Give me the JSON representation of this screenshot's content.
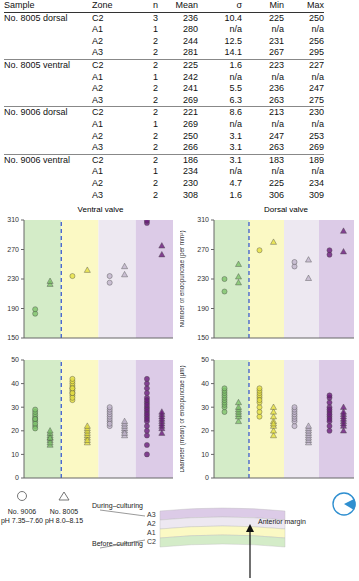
{
  "table": {
    "header": [
      "Sample",
      "Zone",
      "n",
      "Mean",
      "σ",
      "Min",
      "Max"
    ],
    "groups": [
      {
        "sample": "No. 8005 dorsal",
        "rows": [
          [
            "C2",
            3,
            236,
            10.4,
            225,
            250
          ],
          [
            "A1",
            1,
            280,
            "n/a",
            "n/a",
            "n/a"
          ],
          [
            "A2",
            2,
            244,
            12.5,
            231,
            256
          ],
          [
            "A3",
            2,
            281,
            14.1,
            267,
            295
          ]
        ]
      },
      {
        "sample": "No. 8005 ventral",
        "rows": [
          [
            "C2",
            2,
            225,
            1.6,
            223,
            227
          ],
          [
            "A1",
            1,
            242,
            "n/a",
            "n/a",
            "n/a"
          ],
          [
            "A2",
            2,
            241,
            5.5,
            236,
            247
          ],
          [
            "A3",
            2,
            269,
            6.3,
            263,
            275
          ]
        ]
      },
      {
        "sample": "No. 9006 dorsal",
        "rows": [
          [
            "C2",
            2,
            221,
            8.6,
            213,
            230
          ],
          [
            "A1",
            1,
            269,
            "n/a",
            "n/a",
            "n/a"
          ],
          [
            "A2",
            2,
            250,
            3.1,
            247,
            253
          ],
          [
            "A3",
            2,
            266,
            3.1,
            263,
            269
          ]
        ]
      },
      {
        "sample": "No. 9006 ventral",
        "rows": [
          [
            "C2",
            2,
            186,
            3.1,
            183,
            189
          ],
          [
            "A1",
            1,
            234,
            "n/a",
            "n/a",
            "n/a"
          ],
          [
            "A2",
            2,
            230,
            4.7,
            225,
            234
          ],
          [
            "A3",
            2,
            308,
            1.6,
            306,
            309
          ]
        ]
      }
    ]
  },
  "zones": [
    {
      "name": "C2",
      "color": "#d4ecc8"
    },
    {
      "name": "A1",
      "color": "#fbf9c4"
    },
    {
      "name": "A2",
      "color": "#ede8f1"
    },
    {
      "name": "A3",
      "color": "#dccbe7"
    }
  ],
  "chart_data": [
    {
      "type": "scatter",
      "title": "Ventral valve",
      "ylim": [
        150,
        310
      ],
      "yticks": [
        150,
        190,
        230,
        270,
        310
      ],
      "tick_labels": "y",
      "series": [
        {
          "name": "No. 9006",
          "marker": "circle",
          "colors": [
            "#7dc36a",
            "#e6e040",
            "#c0b4cc",
            "#6a1b7a"
          ],
          "values": [
            [
              183,
              189
            ],
            [
              234
            ],
            [
              225,
              234
            ],
            [
              306,
              309
            ]
          ]
        },
        {
          "name": "No. 8005",
          "marker": "triangle",
          "colors": [
            "#7dc36a",
            "#e6e040",
            "#c0b4cc",
            "#6a1b7a"
          ],
          "values": [
            [
              223,
              227
            ],
            [
              242
            ],
            [
              236,
              247
            ],
            [
              263,
              275
            ]
          ]
        }
      ]
    },
    {
      "type": "scatter",
      "title": "Dorsal valve",
      "ylabel": "Number of endopunctae (per mm²)",
      "ylim": [
        150,
        310
      ],
      "yticks": [
        150,
        190,
        230,
        270,
        310
      ],
      "tick_labels": "y",
      "series": [
        {
          "name": "No. 9006",
          "marker": "circle",
          "colors": [
            "#7dc36a",
            "#e6e040",
            "#c0b4cc",
            "#6a1b7a"
          ],
          "values": [
            [
              213,
              230
            ],
            [
              269
            ],
            [
              247,
              253
            ],
            [
              263,
              269
            ]
          ]
        },
        {
          "name": "No. 8005",
          "marker": "triangle",
          "colors": [
            "#7dc36a",
            "#e6e040",
            "#c0b4cc",
            "#6a1b7a"
          ],
          "values": [
            [
              225,
              233,
              250
            ],
            [
              280
            ],
            [
              231,
              256
            ],
            [
              267,
              295
            ]
          ]
        }
      ]
    },
    {
      "type": "scatter",
      "ylim": [
        0,
        50
      ],
      "yticks": [
        0,
        10,
        20,
        30,
        40,
        50
      ],
      "tick_labels": "y",
      "series": [
        {
          "name": "No. 9006",
          "marker": "circle",
          "colors": [
            "#7dc36a",
            "#e6e040",
            "#c0b4cc",
            "#6a1b7a"
          ],
          "values": [
            [
              22,
              24,
              25,
              26,
              27,
              28,
              23,
              29,
              25,
              21
            ],
            [
              33,
              35,
              36,
              37,
              38,
              39,
              40,
              41,
              42,
              34,
              36,
              38
            ],
            [
              22,
              24,
              25,
              26,
              27,
              28,
              29,
              30,
              23
            ],
            [
              10,
              14,
              18,
              20,
              22,
              24,
              26,
              28,
              30,
              32,
              34,
              36,
              38,
              40,
              42,
              25,
              27,
              29,
              31,
              33
            ]
          ]
        },
        {
          "name": "No. 8005",
          "marker": "triangle",
          "colors": [
            "#7dc36a",
            "#e6e040",
            "#c0b4cc",
            "#6a1b7a"
          ],
          "values": [
            [
              14,
              16,
              17,
              18,
              19,
              15,
              20,
              17
            ],
            [
              15,
              17,
              18,
              19,
              20,
              21,
              22,
              16
            ],
            [
              18,
              20,
              21,
              22,
              23,
              24,
              19
            ],
            [
              19,
              21,
              22,
              23,
              24,
              25,
              26,
              27,
              28
            ]
          ]
        }
      ]
    },
    {
      "type": "scatter",
      "ylabel": "Diameter (mean) of endopunctae (μm)",
      "ylim": [
        0,
        50
      ],
      "yticks": [
        0,
        10,
        20,
        30,
        40,
        50
      ],
      "tick_labels": "y",
      "series": [
        {
          "name": "No. 9006",
          "marker": "circle",
          "colors": [
            "#7dc36a",
            "#e6e040",
            "#c0b4cc",
            "#6a1b7a"
          ],
          "values": [
            [
              28,
              30,
              31,
              32,
              33,
              34,
              35,
              36,
              37,
              38
            ],
            [
              26,
              28,
              30,
              32,
              34,
              35,
              36,
              37,
              38,
              33
            ],
            [
              22,
              24,
              25,
              26,
              27,
              28,
              29,
              30
            ],
            [
              20,
              22,
              24,
              26,
              28,
              30,
              32,
              34,
              35,
              25,
              27,
              29
            ]
          ]
        },
        {
          "name": "No. 8005",
          "marker": "triangle",
          "colors": [
            "#7dc36a",
            "#e6e040",
            "#c0b4cc",
            "#6a1b7a"
          ],
          "values": [
            [
              24,
              26,
              27,
              28,
              29,
              30,
              32
            ],
            [
              18,
              20,
              22,
              24,
              26,
              28,
              30,
              23
            ],
            [
              15,
              16,
              17,
              18,
              19,
              20,
              21,
              22
            ],
            [
              20,
              22,
              23,
              24,
              25,
              26,
              27,
              28,
              30
            ]
          ]
        }
      ]
    }
  ],
  "legend": [
    {
      "marker": "circle",
      "lines": [
        "No. 9006",
        "pH 7.35–7.60"
      ]
    },
    {
      "marker": "triangle",
      "lines": [
        "No. 8005",
        "pH 8.0–8.15"
      ]
    }
  ],
  "diagram": {
    "during": "During–culturing",
    "before": "Before–culturing",
    "anterior": "Anterior margin"
  }
}
